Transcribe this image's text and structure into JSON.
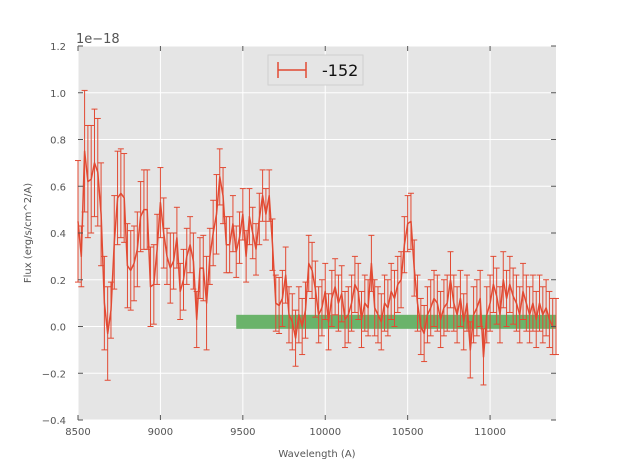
{
  "chart_data": {
    "type": "line",
    "title": "",
    "xlabel": "Wavelength (A)",
    "ylabel": "Flux (erg/s/cm^2/A)",
    "offset_text": "1e−18",
    "xlim": [
      8500,
      11400
    ],
    "ylim": [
      -0.4,
      1.2
    ],
    "y_scale_note": "values in units of 1e-18",
    "xticks": [
      8500,
      9000,
      9500,
      10000,
      10500,
      11000
    ],
    "yticks": [
      -0.4,
      -0.2,
      0.0,
      0.2,
      0.4,
      0.6,
      0.8,
      1.0,
      1.2
    ],
    "xtick_labels": [
      "8500",
      "9000",
      "9500",
      "10000",
      "10500",
      "11000"
    ],
    "ytick_labels": [
      "−0.4",
      "−0.2",
      "0.0",
      "0.2",
      "0.4",
      "0.6",
      "0.8",
      "1.0",
      "1.2"
    ],
    "grid": true,
    "background": "#e5e5e5",
    "legend_position": "top-center",
    "series": [
      {
        "name": "-152",
        "color": "#e24a33",
        "errorbars": true,
        "points": [
          {
            "x": 8500,
            "y": 0.45,
            "err": 0.26
          },
          {
            "x": 8520,
            "y": 0.3,
            "err": 0.13
          },
          {
            "x": 8540,
            "y": 0.75,
            "err": 0.26
          },
          {
            "x": 8560,
            "y": 0.62,
            "err": 0.24
          },
          {
            "x": 8580,
            "y": 0.63,
            "err": 0.23
          },
          {
            "x": 8600,
            "y": 0.7,
            "err": 0.23
          },
          {
            "x": 8620,
            "y": 0.66,
            "err": 0.23
          },
          {
            "x": 8640,
            "y": 0.48,
            "err": 0.22
          },
          {
            "x": 8660,
            "y": 0.1,
            "err": 0.2
          },
          {
            "x": 8680,
            "y": -0.03,
            "err": 0.2
          },
          {
            "x": 8700,
            "y": 0.07,
            "err": 0.12
          },
          {
            "x": 8720,
            "y": 0.36,
            "err": 0.2
          },
          {
            "x": 8740,
            "y": 0.55,
            "err": 0.2
          },
          {
            "x": 8760,
            "y": 0.57,
            "err": 0.19
          },
          {
            "x": 8780,
            "y": 0.55,
            "err": 0.19
          },
          {
            "x": 8800,
            "y": 0.26,
            "err": 0.18
          },
          {
            "x": 8820,
            "y": 0.24,
            "err": 0.17
          },
          {
            "x": 8840,
            "y": 0.27,
            "err": 0.16
          },
          {
            "x": 8860,
            "y": 0.33,
            "err": 0.16
          },
          {
            "x": 8880,
            "y": 0.47,
            "err": 0.15
          },
          {
            "x": 8900,
            "y": 0.5,
            "err": 0.17
          },
          {
            "x": 8920,
            "y": 0.5,
            "err": 0.17
          },
          {
            "x": 8940,
            "y": 0.17,
            "err": 0.17
          },
          {
            "x": 8960,
            "y": 0.18,
            "err": 0.17
          },
          {
            "x": 8980,
            "y": 0.33,
            "err": 0.15
          },
          {
            "x": 9000,
            "y": 0.53,
            "err": 0.15
          },
          {
            "x": 9020,
            "y": 0.4,
            "err": 0.15
          },
          {
            "x": 9040,
            "y": 0.3,
            "err": 0.12
          },
          {
            "x": 9060,
            "y": 0.25,
            "err": 0.15
          },
          {
            "x": 9080,
            "y": 0.28,
            "err": 0.12
          },
          {
            "x": 9100,
            "y": 0.38,
            "err": 0.13
          },
          {
            "x": 9120,
            "y": 0.15,
            "err": 0.12
          },
          {
            "x": 9140,
            "y": 0.2,
            "err": 0.13
          },
          {
            "x": 9160,
            "y": 0.3,
            "err": 0.12
          },
          {
            "x": 9180,
            "y": 0.35,
            "err": 0.12
          },
          {
            "x": 9200,
            "y": 0.28,
            "err": 0.12
          },
          {
            "x": 9220,
            "y": 0.03,
            "err": 0.12
          },
          {
            "x": 9240,
            "y": 0.25,
            "err": 0.13
          },
          {
            "x": 9260,
            "y": 0.25,
            "err": 0.14
          },
          {
            "x": 9280,
            "y": 0.1,
            "err": 0.2
          },
          {
            "x": 9300,
            "y": 0.3,
            "err": 0.12
          },
          {
            "x": 9320,
            "y": 0.4,
            "err": 0.14
          },
          {
            "x": 9340,
            "y": 0.48,
            "err": 0.17
          },
          {
            "x": 9360,
            "y": 0.64,
            "err": 0.12
          },
          {
            "x": 9380,
            "y": 0.56,
            "err": 0.12
          },
          {
            "x": 9400,
            "y": 0.35,
            "err": 0.12
          },
          {
            "x": 9420,
            "y": 0.35,
            "err": 0.12
          },
          {
            "x": 9440,
            "y": 0.44,
            "err": 0.12
          },
          {
            "x": 9460,
            "y": 0.32,
            "err": 0.11
          },
          {
            "x": 9480,
            "y": 0.38,
            "err": 0.11
          },
          {
            "x": 9500,
            "y": 0.48,
            "err": 0.11
          },
          {
            "x": 9520,
            "y": 0.3,
            "err": 0.11
          },
          {
            "x": 9540,
            "y": 0.47,
            "err": 0.12
          },
          {
            "x": 9560,
            "y": 0.4,
            "err": 0.11
          },
          {
            "x": 9580,
            "y": 0.33,
            "err": 0.11
          },
          {
            "x": 9600,
            "y": 0.46,
            "err": 0.11
          },
          {
            "x": 9620,
            "y": 0.56,
            "err": 0.11
          },
          {
            "x": 9640,
            "y": 0.48,
            "err": 0.11
          },
          {
            "x": 9660,
            "y": 0.56,
            "err": 0.11
          },
          {
            "x": 9680,
            "y": 0.35,
            "err": 0.11
          },
          {
            "x": 9700,
            "y": 0.1,
            "err": 0.12
          },
          {
            "x": 9720,
            "y": 0.09,
            "err": 0.12
          },
          {
            "x": 9740,
            "y": 0.12,
            "err": 0.12
          },
          {
            "x": 9760,
            "y": 0.22,
            "err": 0.12
          },
          {
            "x": 9780,
            "y": 0.05,
            "err": 0.12
          },
          {
            "x": 9800,
            "y": 0.02,
            "err": 0.12
          },
          {
            "x": 9820,
            "y": -0.05,
            "err": 0.12
          },
          {
            "x": 9840,
            "y": 0.05,
            "err": 0.12
          },
          {
            "x": 9860,
            "y": 0.0,
            "err": 0.12
          },
          {
            "x": 9880,
            "y": 0.07,
            "err": 0.12
          },
          {
            "x": 9900,
            "y": 0.27,
            "err": 0.12
          },
          {
            "x": 9920,
            "y": 0.24,
            "err": 0.12
          },
          {
            "x": 9940,
            "y": 0.16,
            "err": 0.12
          },
          {
            "x": 9960,
            "y": 0.05,
            "err": 0.12
          },
          {
            "x": 9980,
            "y": 0.08,
            "err": 0.12
          },
          {
            "x": 10000,
            "y": 0.15,
            "err": 0.12
          },
          {
            "x": 10020,
            "y": 0.02,
            "err": 0.12
          },
          {
            "x": 10040,
            "y": 0.12,
            "err": 0.12
          },
          {
            "x": 10060,
            "y": 0.17,
            "err": 0.12
          },
          {
            "x": 10080,
            "y": 0.1,
            "err": 0.12
          },
          {
            "x": 10100,
            "y": 0.14,
            "err": 0.12
          },
          {
            "x": 10120,
            "y": 0.03,
            "err": 0.12
          },
          {
            "x": 10140,
            "y": 0.05,
            "err": 0.12
          },
          {
            "x": 10160,
            "y": 0.1,
            "err": 0.12
          },
          {
            "x": 10180,
            "y": 0.18,
            "err": 0.12
          },
          {
            "x": 10200,
            "y": 0.15,
            "err": 0.12
          },
          {
            "x": 10220,
            "y": 0.03,
            "err": 0.12
          },
          {
            "x": 10240,
            "y": 0.1,
            "err": 0.12
          },
          {
            "x": 10260,
            "y": 0.08,
            "err": 0.12
          },
          {
            "x": 10280,
            "y": 0.27,
            "err": 0.12
          },
          {
            "x": 10300,
            "y": 0.08,
            "err": 0.12
          },
          {
            "x": 10320,
            "y": 0.05,
            "err": 0.12
          },
          {
            "x": 10340,
            "y": 0.02,
            "err": 0.12
          },
          {
            "x": 10360,
            "y": 0.1,
            "err": 0.12
          },
          {
            "x": 10380,
            "y": 0.08,
            "err": 0.12
          },
          {
            "x": 10400,
            "y": 0.15,
            "err": 0.12
          },
          {
            "x": 10420,
            "y": 0.12,
            "err": 0.12
          },
          {
            "x": 10440,
            "y": 0.18,
            "err": 0.12
          },
          {
            "x": 10460,
            "y": 0.2,
            "err": 0.12
          },
          {
            "x": 10480,
            "y": 0.35,
            "err": 0.12
          },
          {
            "x": 10500,
            "y": 0.44,
            "err": 0.12
          },
          {
            "x": 10520,
            "y": 0.45,
            "err": 0.12
          },
          {
            "x": 10540,
            "y": 0.25,
            "err": 0.12
          },
          {
            "x": 10560,
            "y": 0.1,
            "err": 0.12
          },
          {
            "x": 10580,
            "y": 0.0,
            "err": 0.12
          },
          {
            "x": 10600,
            "y": -0.03,
            "err": 0.12
          },
          {
            "x": 10620,
            "y": 0.05,
            "err": 0.12
          },
          {
            "x": 10640,
            "y": 0.08,
            "err": 0.12
          },
          {
            "x": 10660,
            "y": 0.12,
            "err": 0.12
          },
          {
            "x": 10680,
            "y": 0.1,
            "err": 0.12
          },
          {
            "x": 10700,
            "y": 0.03,
            "err": 0.12
          },
          {
            "x": 10720,
            "y": 0.08,
            "err": 0.12
          },
          {
            "x": 10740,
            "y": 0.1,
            "err": 0.12
          },
          {
            "x": 10760,
            "y": 0.2,
            "err": 0.12
          },
          {
            "x": 10780,
            "y": 0.1,
            "err": 0.12
          },
          {
            "x": 10800,
            "y": 0.05,
            "err": 0.12
          },
          {
            "x": 10820,
            "y": 0.12,
            "err": 0.12
          },
          {
            "x": 10840,
            "y": 0.02,
            "err": 0.12
          },
          {
            "x": 10860,
            "y": 0.1,
            "err": 0.12
          },
          {
            "x": 10880,
            "y": -0.1,
            "err": 0.12
          },
          {
            "x": 10900,
            "y": 0.05,
            "err": 0.12
          },
          {
            "x": 10920,
            "y": 0.08,
            "err": 0.12
          },
          {
            "x": 10940,
            "y": 0.12,
            "err": 0.12
          },
          {
            "x": 10960,
            "y": -0.13,
            "err": 0.12
          },
          {
            "x": 10980,
            "y": 0.05,
            "err": 0.12
          },
          {
            "x": 11000,
            "y": 0.1,
            "err": 0.12
          },
          {
            "x": 11020,
            "y": 0.18,
            "err": 0.12
          },
          {
            "x": 11040,
            "y": 0.13,
            "err": 0.12
          },
          {
            "x": 11060,
            "y": 0.05,
            "err": 0.12
          },
          {
            "x": 11080,
            "y": 0.2,
            "err": 0.12
          },
          {
            "x": 11100,
            "y": 0.12,
            "err": 0.12
          },
          {
            "x": 11120,
            "y": 0.18,
            "err": 0.12
          },
          {
            "x": 11140,
            "y": 0.13,
            "err": 0.12
          },
          {
            "x": 11160,
            "y": 0.1,
            "err": 0.12
          },
          {
            "x": 11180,
            "y": 0.05,
            "err": 0.12
          },
          {
            "x": 11200,
            "y": 0.15,
            "err": 0.12
          },
          {
            "x": 11220,
            "y": 0.1,
            "err": 0.12
          },
          {
            "x": 11240,
            "y": 0.05,
            "err": 0.12
          },
          {
            "x": 11260,
            "y": 0.1,
            "err": 0.12
          },
          {
            "x": 11280,
            "y": 0.03,
            "err": 0.12
          },
          {
            "x": 11300,
            "y": 0.1,
            "err": 0.12
          },
          {
            "x": 11320,
            "y": 0.05,
            "err": 0.12
          },
          {
            "x": 11340,
            "y": 0.08,
            "err": 0.12
          },
          {
            "x": 11360,
            "y": 0.03,
            "err": 0.12
          },
          {
            "x": 11380,
            "y": 0.0,
            "err": 0.12
          },
          {
            "x": 11400,
            "y": 0.0,
            "err": 0.12
          }
        ]
      }
    ],
    "band": {
      "color": "#6ab36a",
      "x_start": 9460,
      "x_end": 11400,
      "y_center": 0.02,
      "half_height": 0.03
    }
  }
}
